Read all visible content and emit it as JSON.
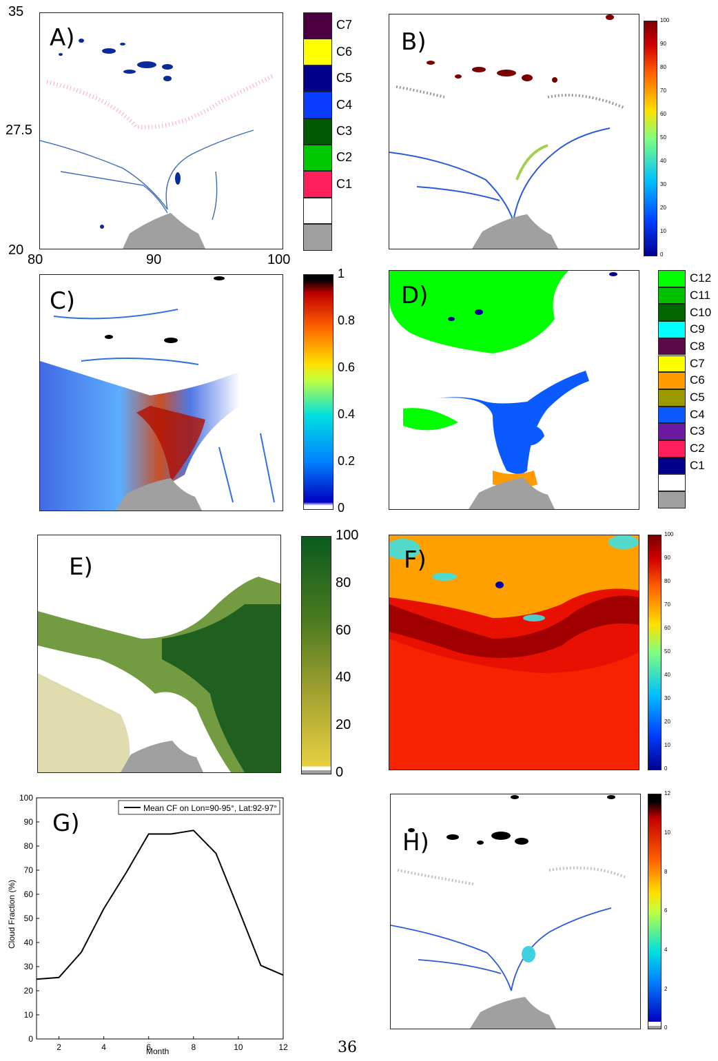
{
  "panels": {
    "A": {
      "label": "A)",
      "y_ticks": [
        "35",
        "27.5",
        "20"
      ],
      "x_ticks": [
        "80",
        "90",
        "100"
      ],
      "legend": [
        {
          "label": "C7",
          "color": "#4d0041"
        },
        {
          "label": "C6",
          "color": "#ffff00"
        },
        {
          "label": "C5",
          "color": "#00008b"
        },
        {
          "label": "C4",
          "color": "#0a3cff"
        },
        {
          "label": "C3",
          "color": "#005800"
        },
        {
          "label": "C2",
          "color": "#00c800"
        },
        {
          "label": "C1",
          "color": "#ff1f5a"
        },
        {
          "label": "",
          "color": "#ffffff"
        },
        {
          "label": "",
          "color": "#a0a0a0"
        }
      ]
    },
    "B": {
      "label": "B)",
      "colorbar_ticks": [
        "100",
        "90",
        "80",
        "70",
        "60",
        "50",
        "40",
        "30",
        "20",
        "10",
        "0"
      ]
    },
    "C": {
      "label": "C)",
      "colorbar_ticks": [
        "1",
        "0.8",
        "0.6",
        "0.4",
        "0.2",
        "0"
      ]
    },
    "D": {
      "label": "D)",
      "legend": [
        {
          "label": "C12",
          "color": "#00ff00"
        },
        {
          "label": "C11",
          "color": "#00c000"
        },
        {
          "label": "C10",
          "color": "#006400"
        },
        {
          "label": "C9",
          "color": "#00ffff"
        },
        {
          "label": "C8",
          "color": "#5a0a46"
        },
        {
          "label": "C7",
          "color": "#ffff00"
        },
        {
          "label": "C6",
          "color": "#ff9a00"
        },
        {
          "label": "C5",
          "color": "#9a9a00"
        },
        {
          "label": "C4",
          "color": "#0a5aff"
        },
        {
          "label": "C3",
          "color": "#6a1aa0"
        },
        {
          "label": "C2",
          "color": "#ff1f5a"
        },
        {
          "label": "C1",
          "color": "#00008b"
        },
        {
          "label": "",
          "color": "#ffffff"
        },
        {
          "label": "",
          "color": "#a0a0a0"
        }
      ]
    },
    "E": {
      "label": "E)",
      "colorbar_ticks": [
        "100",
        "80",
        "60",
        "40",
        "20",
        "0"
      ]
    },
    "F": {
      "label": "F)",
      "colorbar_ticks": [
        "100",
        "90",
        "80",
        "70",
        "60",
        "50",
        "40",
        "30",
        "20",
        "10",
        "0"
      ]
    },
    "G": {
      "label": "G)",
      "chart_data": {
        "type": "line",
        "x": [
          1,
          2,
          3,
          4,
          5,
          6,
          7,
          8,
          9,
          10,
          11,
          12
        ],
        "series": [
          {
            "name": "Mean CF on Lon=90-95°, Lat:92-97°",
            "values": [
              24.8,
              25.5,
              36,
              54,
              69,
              85,
              85,
              86.5,
              77,
              54,
              30.5,
              26.5
            ]
          }
        ],
        "xlabel": "Month",
        "ylabel": "Cloud Fraction (%)",
        "xlim": [
          1,
          12
        ],
        "ylim": [
          0,
          100
        ],
        "x_ticks": [
          "2",
          "4",
          "6",
          "8",
          "10",
          "12"
        ],
        "y_ticks": [
          "100",
          "90",
          "80",
          "70",
          "60",
          "50",
          "40",
          "30",
          "20",
          "10",
          "0"
        ],
        "legend_position": "top-right",
        "grid": false
      }
    },
    "H": {
      "label": "H)",
      "colorbar_ticks": [
        "12",
        "10",
        "8",
        "6",
        "4",
        "2",
        "0"
      ]
    }
  },
  "page_number": "36"
}
